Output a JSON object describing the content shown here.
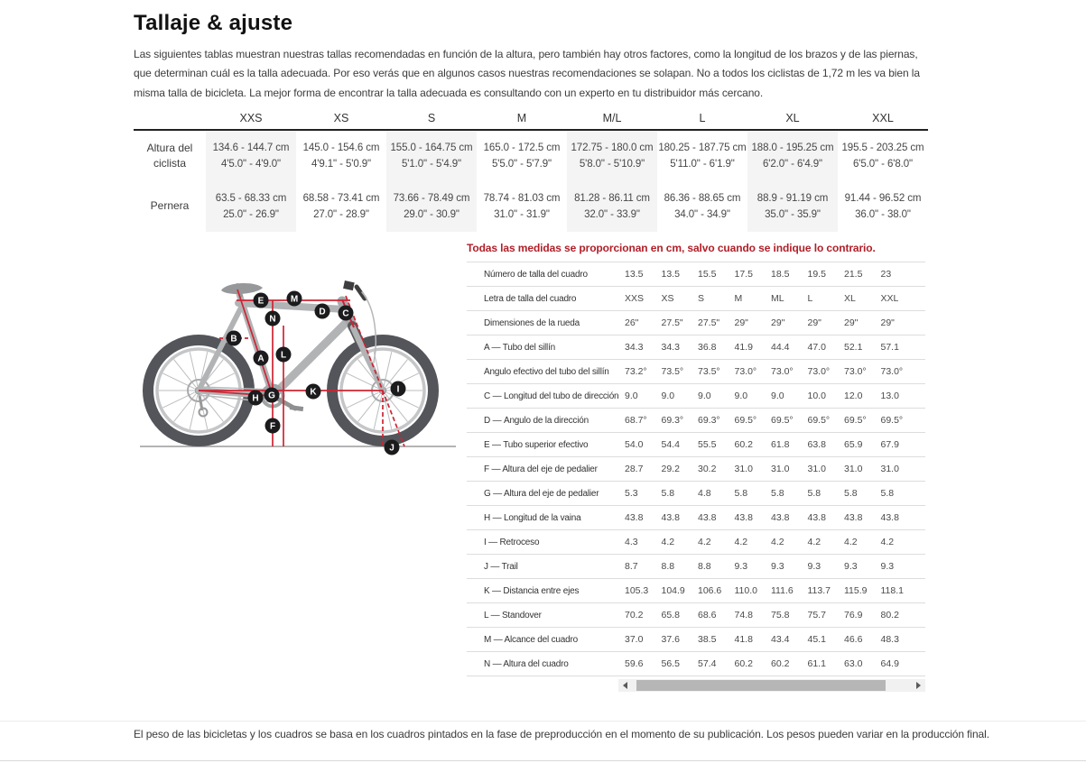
{
  "title": "Tallaje & ajuste",
  "intro": "Las siguientes tablas muestran nuestras tallas recomendadas en función de la altura, pero también hay otros factores, como la longitud de los brazos y de las piernas, que determinan cuál es la talla adecuada. Por eso verás que en algunos casos nuestras recomendaciones se solapan. No a todos los ciclistas de 1,72 m les va bien la misma talla de bicicleta. La mejor forma de encontrar la talla adecuada es consultando con un experto en tu distribuidor más cercano.",
  "footer_note": "El peso de las bicicletas y los cuadros se basa en los cuadros pintados en la fase de preproducción en el momento de su publicación. Los pesos pueden variar en la producción final.",
  "colors": {
    "note_red": "#b01f28",
    "diagram_line_red": "#ce2433",
    "shaded_column": "#f4f4f4"
  },
  "size_table": {
    "columns": [
      "XXS",
      "XS",
      "S",
      "M",
      "M/L",
      "L",
      "XL",
      "XXL"
    ],
    "rows": [
      {
        "label": "Altura del ciclista",
        "values": [
          {
            "cm": "134.6 - 144.7 cm",
            "in": "4'5.0\" - 4'9.0\""
          },
          {
            "cm": "145.0 - 154.6 cm",
            "in": "4'9.1\" - 5'0.9\""
          },
          {
            "cm": "155.0 - 164.75 cm",
            "in": "5'1.0\" - 5'4.9\""
          },
          {
            "cm": "165.0 - 172.5 cm",
            "in": "5'5.0\" - 5'7.9\""
          },
          {
            "cm": "172.75 - 180.0 cm",
            "in": "5'8.0\" - 5'10.9\""
          },
          {
            "cm": "180.25 - 187.75 cm",
            "in": "5'11.0\" - 6'1.9\""
          },
          {
            "cm": "188.0 - 195.25 cm",
            "in": "6'2.0\" - 6'4.9\""
          },
          {
            "cm": "195.5 - 203.25 cm",
            "in": "6'5.0\" - 6'8.0\""
          }
        ]
      },
      {
        "label": "Pernera",
        "values": [
          {
            "cm": "63.5 - 68.33 cm",
            "in": "25.0\" - 26.9\""
          },
          {
            "cm": "68.58 - 73.41 cm",
            "in": "27.0\" - 28.9\""
          },
          {
            "cm": "73.66 - 78.49 cm",
            "in": "29.0\" - 30.9\""
          },
          {
            "cm": "78.74 - 81.03 cm",
            "in": "31.0\" - 31.9\""
          },
          {
            "cm": "81.28 - 86.11 cm",
            "in": "32.0\" - 33.9\""
          },
          {
            "cm": "86.36 - 88.65 cm",
            "in": "34.0\" - 34.9\""
          },
          {
            "cm": "88.9 - 91.19 cm",
            "in": "35.0\" - 35.9\""
          },
          {
            "cm": "91.44 - 96.52 cm",
            "in": "36.0\" - 38.0\""
          }
        ]
      }
    ]
  },
  "geometry": {
    "note": "Todas las medidas se proporcionan en cm, salvo cuando se indique lo contrario.",
    "rows": [
      {
        "label": "Número de talla del cuadro",
        "values": [
          "13.5",
          "13.5",
          "15.5",
          "17.5",
          "18.5",
          "19.5",
          "21.5",
          "23"
        ]
      },
      {
        "label": "Letra de talla del cuadro",
        "values": [
          "XXS",
          "XS",
          "S",
          "M",
          "ML",
          "L",
          "XL",
          "XXL"
        ]
      },
      {
        "label": "Dimensiones de la rueda",
        "values": [
          "26\"",
          "27.5\"",
          "27.5\"",
          "29\"",
          "29\"",
          "29\"",
          "29\"",
          "29\""
        ]
      },
      {
        "label": "A — Tubo del sillín",
        "values": [
          "34.3",
          "34.3",
          "36.8",
          "41.9",
          "44.4",
          "47.0",
          "52.1",
          "57.1"
        ]
      },
      {
        "label": "Ángulo efectivo del tubo del sillín",
        "values": [
          "73.2°",
          "73.5°",
          "73.5°",
          "73.0°",
          "73.0°",
          "73.0°",
          "73.0°",
          "73.0°"
        ]
      },
      {
        "label": "C — Longitud del tubo de dirección",
        "values": [
          "9.0",
          "9.0",
          "9.0",
          "9.0",
          "9.0",
          "10.0",
          "12.0",
          "13.0"
        ]
      },
      {
        "label": "D — Ángulo de la dirección",
        "values": [
          "68.7°",
          "69.3°",
          "69.3°",
          "69.5°",
          "69.5°",
          "69.5°",
          "69.5°",
          "69.5°"
        ]
      },
      {
        "label": "E — Tubo superior efectivo",
        "values": [
          "54.0",
          "54.4",
          "55.5",
          "60.2",
          "61.8",
          "63.8",
          "65.9",
          "67.9"
        ]
      },
      {
        "label": "F — Altura del eje de pedalier",
        "values": [
          "28.7",
          "29.2",
          "30.2",
          "31.0",
          "31.0",
          "31.0",
          "31.0",
          "31.0"
        ]
      },
      {
        "label": "G — Altura del eje de pedalier",
        "values": [
          "5.3",
          "5.8",
          "4.8",
          "5.8",
          "5.8",
          "5.8",
          "5.8",
          "5.8"
        ]
      },
      {
        "label": "H — Longitud de la vaina",
        "values": [
          "43.8",
          "43.8",
          "43.8",
          "43.8",
          "43.8",
          "43.8",
          "43.8",
          "43.8"
        ]
      },
      {
        "label": "I — Retroceso",
        "values": [
          "4.3",
          "4.2",
          "4.2",
          "4.2",
          "4.2",
          "4.2",
          "4.2",
          "4.2"
        ]
      },
      {
        "label": "J — Trail",
        "values": [
          "8.7",
          "8.8",
          "8.8",
          "9.3",
          "9.3",
          "9.3",
          "9.3",
          "9.3"
        ]
      },
      {
        "label": "K — Distancia entre ejes",
        "values": [
          "105.3",
          "104.9",
          "106.6",
          "110.0",
          "111.6",
          "113.7",
          "115.9",
          "118.1"
        ]
      },
      {
        "label": "L — Standover",
        "values": [
          "70.2",
          "65.8",
          "68.6",
          "74.8",
          "75.8",
          "75.7",
          "76.9",
          "80.2"
        ]
      },
      {
        "label": "M — Alcance del cuadro",
        "values": [
          "37.0",
          "37.6",
          "38.5",
          "41.8",
          "43.4",
          "45.1",
          "46.6",
          "48.3"
        ]
      },
      {
        "label": "N — Altura del cuadro",
        "values": [
          "59.6",
          "56.5",
          "57.4",
          "60.2",
          "60.2",
          "61.1",
          "63.0",
          "64.9"
        ]
      }
    ]
  },
  "diagram": {
    "markers": [
      "E",
      "M",
      "N",
      "D",
      "C",
      "B",
      "A",
      "L",
      "H",
      "G",
      "K",
      "I",
      "F",
      "J"
    ]
  }
}
